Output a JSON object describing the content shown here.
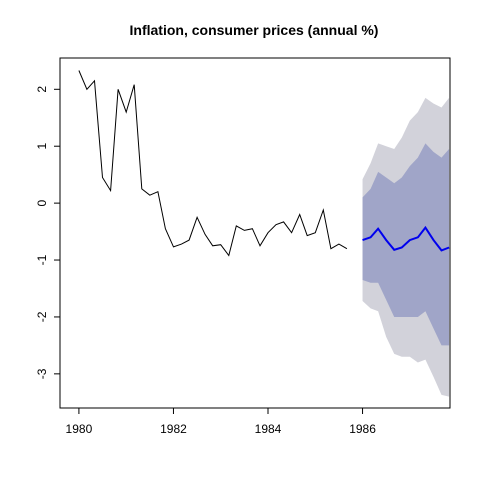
{
  "chart_data": {
    "type": "line",
    "title": "Inflation, consumer prices (annual %)",
    "xlabel": "",
    "ylabel": "",
    "xlim": [
      1979.6,
      1987.85
    ],
    "ylim": [
      -3.6,
      2.55
    ],
    "x_ticks": [
      1980,
      1982,
      1984,
      1986
    ],
    "y_ticks": [
      -3,
      -2,
      -1,
      0,
      1,
      2
    ],
    "grid": false,
    "legend": "none",
    "colors": {
      "history": "#000000",
      "forecast": "#0000ee",
      "band_80": "#a0a5c8",
      "band_95": "#d2d2da"
    },
    "history": {
      "x": [
        1980.0,
        1980.17,
        1980.33,
        1980.5,
        1980.67,
        1980.83,
        1981.0,
        1981.17,
        1981.33,
        1981.5,
        1981.67,
        1981.83,
        1982.0,
        1982.17,
        1982.33,
        1982.5,
        1982.67,
        1982.83,
        1983.0,
        1983.17,
        1983.33,
        1983.5,
        1983.67,
        1983.83,
        1984.0,
        1984.17,
        1984.33,
        1984.5,
        1984.67,
        1984.83,
        1985.0,
        1985.17,
        1985.33,
        1985.5,
        1985.67
      ],
      "y": [
        2.33,
        2.0,
        2.15,
        0.45,
        0.22,
        2.0,
        1.6,
        2.08,
        0.25,
        0.14,
        0.2,
        -0.45,
        -0.77,
        -0.72,
        -0.65,
        -0.25,
        -0.55,
        -0.75,
        -0.73,
        -0.92,
        -0.4,
        -0.48,
        -0.45,
        -0.75,
        -0.52,
        -0.38,
        -0.33,
        -0.52,
        -0.2,
        -0.57,
        -0.52,
        -0.12,
        -0.8,
        -0.72,
        -0.8
      ]
    },
    "forecast": {
      "x": [
        1986.0,
        1986.17,
        1986.33,
        1986.5,
        1986.67,
        1986.83,
        1987.0,
        1987.17,
        1987.33,
        1987.5,
        1987.67,
        1987.83
      ],
      "mean": [
        -0.65,
        -0.6,
        -0.45,
        -0.65,
        -0.82,
        -0.78,
        -0.65,
        -0.6,
        -0.43,
        -0.65,
        -0.83,
        -0.78
      ],
      "lo80": [
        -1.35,
        -1.4,
        -1.4,
        -1.7,
        -2.0,
        -2.0,
        -2.0,
        -2.0,
        -1.9,
        -2.2,
        -2.5,
        -2.5
      ],
      "hi80": [
        0.1,
        0.25,
        0.55,
        0.45,
        0.35,
        0.45,
        0.65,
        0.8,
        1.05,
        0.9,
        0.8,
        0.95
      ],
      "lo95": [
        -1.72,
        -1.85,
        -1.9,
        -2.35,
        -2.65,
        -2.7,
        -2.7,
        -2.8,
        -2.75,
        -3.05,
        -3.37,
        -3.4
      ],
      "hi95": [
        0.42,
        0.7,
        1.05,
        1.0,
        0.95,
        1.15,
        1.45,
        1.6,
        1.85,
        1.75,
        1.68,
        1.85
      ]
    }
  }
}
